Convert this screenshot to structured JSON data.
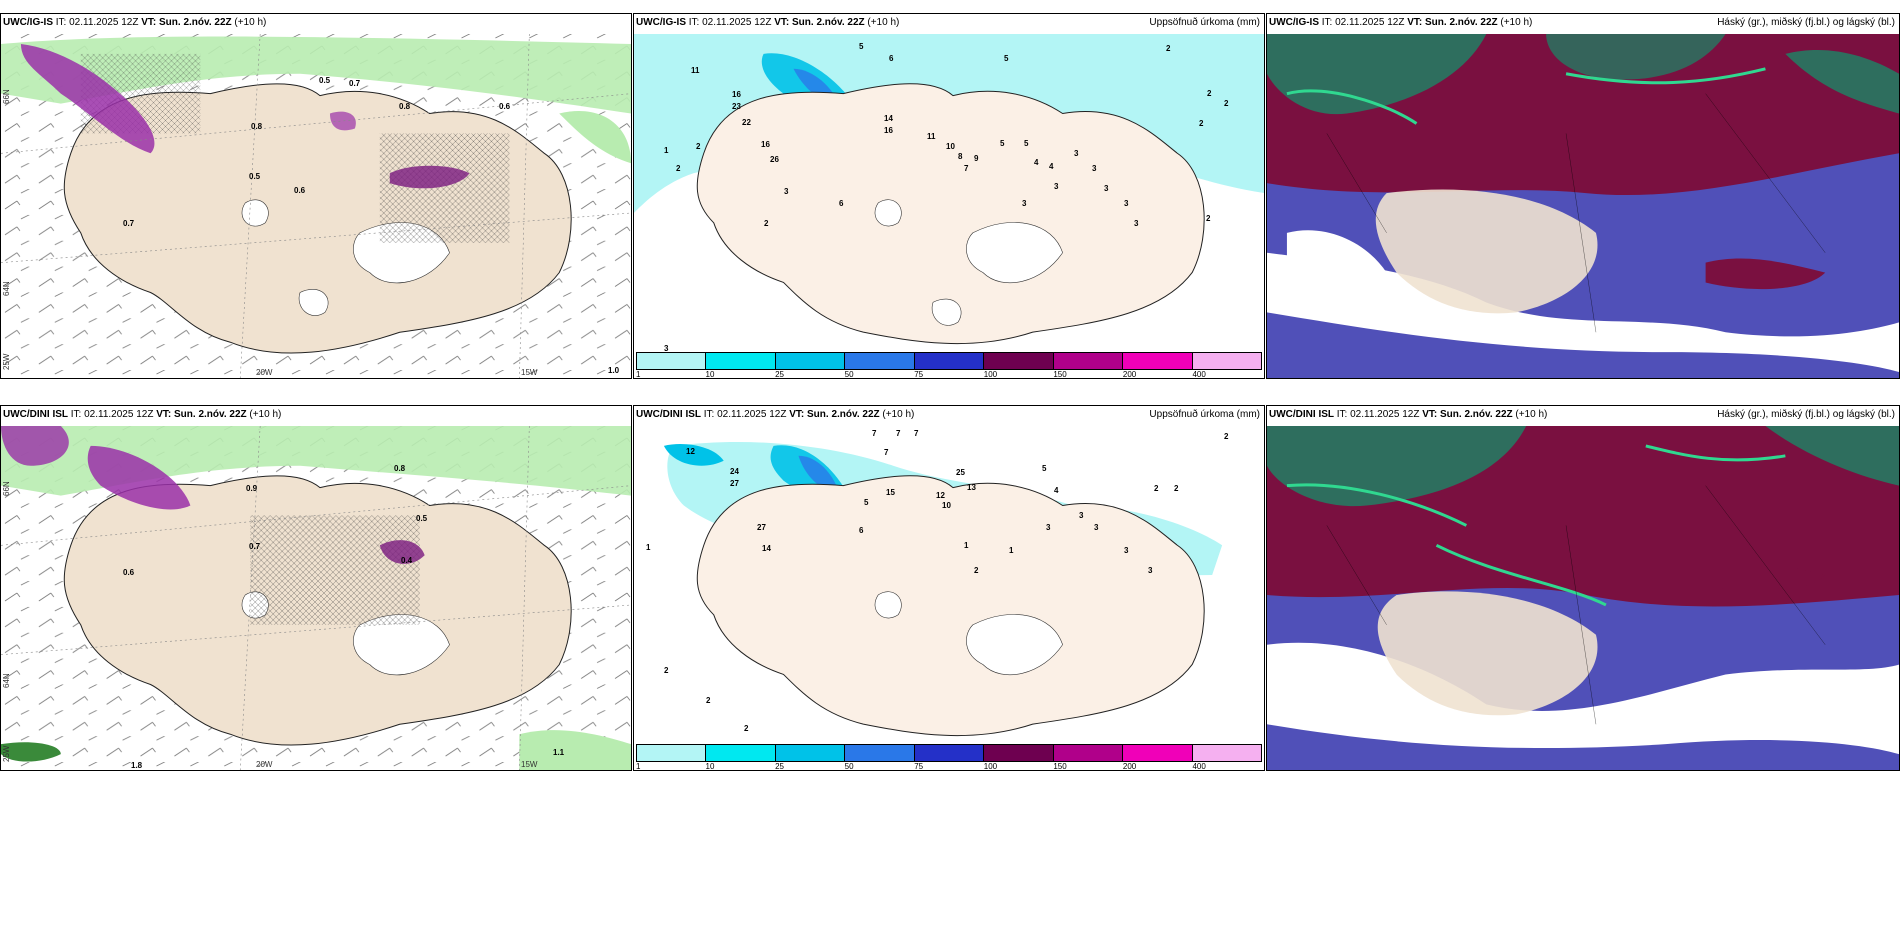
{
  "rows": [
    {
      "model": "UWC/IG-IS",
      "it": "IT: 02.11.2025 12Z",
      "vt_label": "VT:",
      "vt": "Sun. 2.nóv. 22Z",
      "lead": "(+10 h)"
    },
    {
      "model": "UWC/DINI ISL",
      "it": "IT: 02.11.2025 12Z",
      "vt_label": "VT:",
      "vt": "Sun. 2.nóv. 22Z",
      "lead": "(+10 h)"
    }
  ],
  "precip_title": "Uppsöfnuð úrkoma (mm)",
  "cloud_title": "Háský (gr.), miðský (fj.bl.) og lágský (bl.)",
  "colorbar": {
    "ticks": [
      "1",
      "10",
      "25",
      "50",
      "75",
      "100",
      "150",
      "200",
      "400"
    ],
    "colors": [
      "#b3f5f5",
      "#00e8f0",
      "#00c2e8",
      "#2a78e8",
      "#2430c8",
      "#6e0050",
      "#b0008a",
      "#f000b8",
      "#f5b0f0"
    ]
  },
  "axes": {
    "lat_66": "66N",
    "lat_64": "64N",
    "lat_25w": "25W",
    "lon_20w": "20W",
    "lon_15w": "15W"
  },
  "colors": {
    "land": "#f0e2d0",
    "sea_precip": "#b3f5f5",
    "cloud_high": "#2e6e5e",
    "cloud_mid": "#7a1040",
    "cloud_low": "#5050b8",
    "wind_green": "#b8ecb0",
    "purple": "#9a30a8"
  },
  "precip_values_top": [
    "5",
    "6",
    "5",
    "2",
    "2",
    "2",
    "2",
    "11",
    "16",
    "23",
    "22",
    "16",
    "26",
    "14",
    "16",
    "11",
    "10",
    "8",
    "7",
    "9",
    "5",
    "5",
    "4",
    "4",
    "3",
    "3",
    "3",
    "3",
    "3",
    "3",
    "1",
    "2",
    "2",
    "2",
    "6",
    "3",
    "3",
    "2",
    "3",
    "3"
  ],
  "precip_values_bottom": [
    "7",
    "7",
    "7",
    "7",
    "5",
    "2",
    "12",
    "24",
    "27",
    "15",
    "12",
    "10",
    "25",
    "13",
    "27",
    "14",
    "6",
    "5",
    "4",
    "3",
    "2",
    "2",
    "1",
    "1",
    "2",
    "1",
    "2",
    "2",
    "3",
    "3",
    "3",
    "3",
    "2"
  ],
  "wind_values_top": [
    "0.5",
    "0.8",
    "0.7",
    "0.6",
    "0.5",
    "0.6",
    "0.8",
    "0.7",
    "1.0"
  ],
  "wind_values_bottom": [
    "0.9",
    "0.8",
    "0.7",
    "0.5",
    "0.4",
    "0.6",
    "1.1",
    "1.8"
  ]
}
